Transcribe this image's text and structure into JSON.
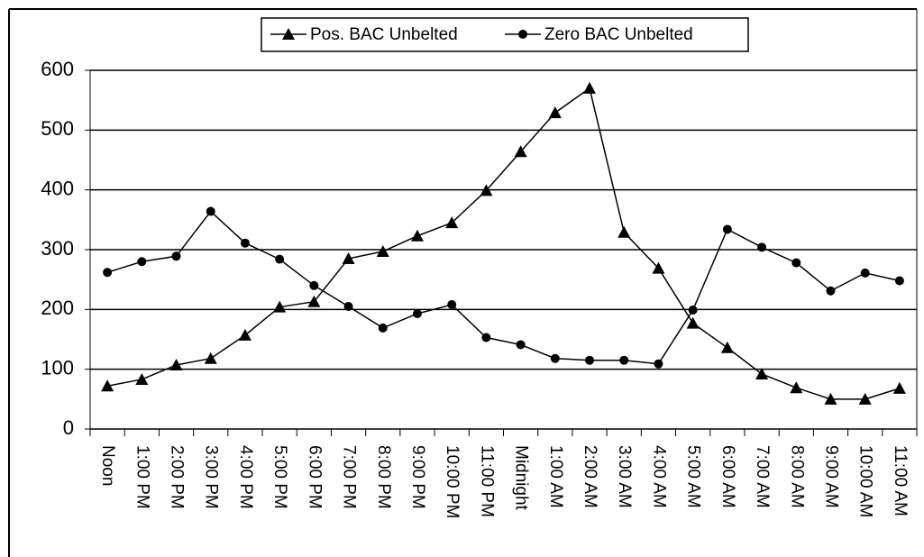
{
  "chart_data": {
    "type": "line",
    "categories": [
      "Noon",
      "1:00 PM",
      "2:00 PM",
      "3:00 PM",
      "4:00 PM",
      "5:00 PM",
      "6:00 PM",
      "7:00 PM",
      "8:00 PM",
      "9:00 PM",
      "10:00 PM",
      "11:00 PM",
      "Midnight",
      "1:00 AM",
      "2:00 AM",
      "3:00 AM",
      "4:00 AM",
      "5:00 AM",
      "6:00 AM",
      "7:00 AM",
      "8:00 AM",
      "9:00 AM",
      "10:00 AM",
      "11:00 AM"
    ],
    "series": [
      {
        "name": "Pos. BAC Unbelted",
        "color": "#000000",
        "marker": "triangle",
        "values": [
          72,
          83,
          107,
          118,
          157,
          204,
          213,
          285,
          297,
          323,
          345,
          399,
          464,
          529,
          570,
          329,
          269,
          177,
          136,
          92,
          69,
          50,
          50,
          68
        ]
      },
      {
        "name": "Zero BAC Unbelted",
        "color": "#000000",
        "marker": "circle",
        "values": [
          262,
          280,
          289,
          364,
          311,
          284,
          240,
          205,
          169,
          193,
          208,
          153,
          141,
          118,
          115,
          115,
          109,
          199,
          334,
          304,
          278,
          231,
          261,
          248
        ]
      }
    ],
    "ylim": [
      0,
      600
    ],
    "yticks": [
      0,
      100,
      200,
      300,
      400,
      500,
      600
    ],
    "grid": true,
    "legend": "top"
  }
}
